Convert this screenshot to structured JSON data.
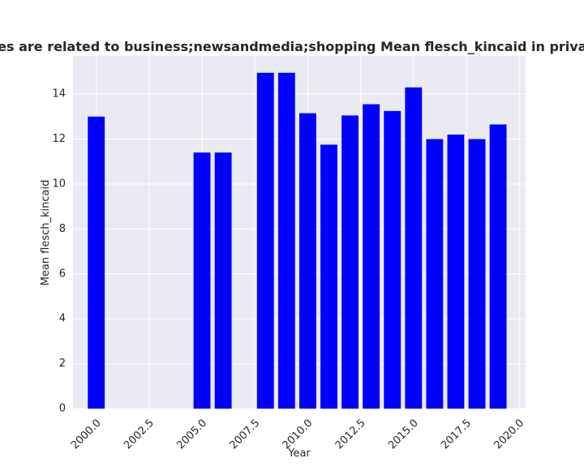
{
  "chart_data": {
    "type": "bar",
    "title": "Categories are related to business;newsandmedia;shopping Mean flesch_kincaid in privacy policies",
    "xlabel": "Year",
    "ylabel": "Mean flesch_kincaid",
    "x": [
      2000,
      2005,
      2006,
      2008,
      2009,
      2010,
      2011,
      2012,
      2013,
      2014,
      2015,
      2016,
      2017,
      2018,
      2019
    ],
    "values": [
      13.0,
      11.4,
      11.4,
      14.95,
      14.95,
      13.15,
      11.75,
      13.05,
      13.55,
      13.25,
      14.3,
      12.0,
      12.2,
      12.0,
      12.65
    ],
    "xlim": [
      1998.9,
      2020.3
    ],
    "ylim": [
      0,
      15.7
    ],
    "xticks": [
      "2000.0",
      "2002.5",
      "2005.0",
      "2007.5",
      "2010.0",
      "2012.5",
      "2015.0",
      "2017.5",
      "2020.0"
    ],
    "yticks": [
      "0",
      "2",
      "4",
      "6",
      "8",
      "10",
      "12",
      "14"
    ],
    "grid": true,
    "bar_color": "#0000ff",
    "background_color": "#eaeaf2"
  }
}
